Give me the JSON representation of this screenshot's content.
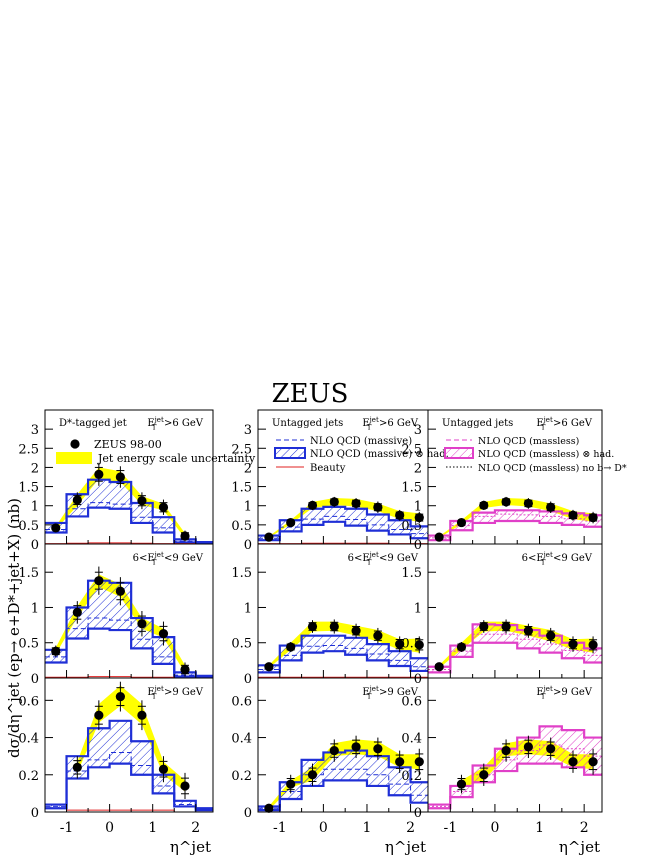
{
  "figure": {
    "title": "ZEUS",
    "ylabel": "dσ/dη^jet (ep→ e+D*+jet+X) (nb)",
    "xlabel": "η^jet",
    "x_ticks": [
      -1,
      0,
      1,
      2
    ]
  },
  "legends": {
    "left": [
      {
        "key": "data",
        "label": "ZEUS 98-00"
      },
      {
        "key": "band",
        "label": "Jet energy scale uncertainty"
      }
    ],
    "middle": [
      {
        "key": "dash-blue",
        "label": "NLO QCD (massive)"
      },
      {
        "key": "hatch-blue",
        "label": "NLO QCD (massive) ⊗ had."
      },
      {
        "key": "red",
        "label": "Beauty"
      }
    ],
    "right": [
      {
        "key": "dash-pink",
        "label": "NLO QCD (massless)"
      },
      {
        "key": "hatch-pink",
        "label": "NLO QCD (massless) ⊗ had."
      },
      {
        "key": "dot",
        "label": "NLO QCD (massless) no b→ D*"
      }
    ]
  },
  "colors": {
    "band": "#ffff00",
    "massive": "#1f2fd6",
    "massless": "#e040c8",
    "beauty": "#e02020",
    "data": "#000000"
  },
  "chart_data": {
    "type": "bar",
    "bin_edges": [
      -1.5,
      -1,
      -0.5,
      0,
      0.5,
      1,
      1.5,
      2,
      2.4
    ],
    "x_centers": [
      -1.25,
      -0.75,
      -0.25,
      0.25,
      0.75,
      1.25,
      1.75,
      2.2
    ],
    "xlim": [
      -1.5,
      2.4
    ],
    "rows": [
      {
        "cut": "E_T^jet>6 GeV",
        "ylim": [
          0,
          3.5
        ],
        "yticks": [
          "0",
          "0.5",
          "1",
          "1.5",
          "2",
          "2.5",
          "3"
        ],
        "ytick_values": [
          0,
          0.5,
          1,
          1.5,
          2,
          2.5,
          3
        ],
        "panels": [
          {
            "label": "D*-tagged jet",
            "cut": "E_T^jet>6 GeV",
            "data": [
              0.42,
              1.15,
              1.82,
              1.75,
              1.13,
              0.96,
              0.21,
              null
            ],
            "err": [
              0.08,
              0.2,
              0.3,
              0.28,
              0.22,
              0.2,
              0.14,
              null
            ],
            "band_low": [
              0.38,
              1.0,
              1.7,
              1.62,
              1.02,
              0.88,
              0.15,
              null
            ],
            "band_high": [
              0.46,
              1.3,
              2.0,
              1.9,
              1.25,
              1.05,
              0.28,
              null
            ],
            "theory_low": [
              0.3,
              0.72,
              0.95,
              0.92,
              0.55,
              0.3,
              0.04,
              0.02
            ],
            "theory_high": [
              0.55,
              1.3,
              1.68,
              1.62,
              1.07,
              0.7,
              0.12,
              0.05
            ],
            "theory_central": [
              0.38,
              0.92,
              1.08,
              1.04,
              0.7,
              0.42,
              0.07,
              0.03
            ],
            "beauty": [
              0.01,
              0.02,
              0.03,
              0.03,
              0.02,
              0.01,
              0.01,
              0.0
            ]
          },
          {
            "label": "Untagged jets",
            "cut": "E_T^jet>6 GeV",
            "data": [
              0.18,
              0.56,
              1.01,
              1.1,
              1.06,
              0.96,
              0.75,
              0.69
            ],
            "err": [
              0.05,
              0.08,
              0.12,
              0.13,
              0.14,
              0.15,
              0.14,
              0.15
            ],
            "band_low": [
              0.16,
              0.52,
              0.94,
              1.02,
              0.98,
              0.86,
              0.65,
              0.58
            ],
            "band_high": [
              0.2,
              0.62,
              1.1,
              1.2,
              1.18,
              1.06,
              0.86,
              0.8
            ],
            "theory_low": [
              0.1,
              0.33,
              0.5,
              0.58,
              0.48,
              0.35,
              0.25,
              0.15
            ],
            "theory_high": [
              0.22,
              0.62,
              0.92,
              0.97,
              0.92,
              0.77,
              0.62,
              0.46
            ],
            "theory_central": [
              0.15,
              0.44,
              0.65,
              0.72,
              0.64,
              0.5,
              0.38,
              0.27
            ],
            "beauty": [
              0.01,
              0.01,
              0.02,
              0.02,
              0.02,
              0.02,
              0.01,
              0.01
            ]
          },
          {
            "label": "Untagged jets",
            "cut": "E_T^jet>6 GeV",
            "data": [
              0.18,
              0.56,
              1.01,
              1.1,
              1.06,
              0.96,
              0.75,
              0.69
            ],
            "err": [
              0.05,
              0.08,
              0.12,
              0.13,
              0.14,
              0.15,
              0.14,
              0.15
            ],
            "band_low": [
              0.16,
              0.52,
              0.94,
              1.02,
              0.98,
              0.86,
              0.65,
              0.58
            ],
            "band_high": [
              0.2,
              0.62,
              1.1,
              1.2,
              1.18,
              1.06,
              0.86,
              0.8
            ],
            "theory_low": [
              0.1,
              0.36,
              0.55,
              0.6,
              0.6,
              0.55,
              0.5,
              0.45
            ],
            "theory_high": [
              0.22,
              0.6,
              0.82,
              0.88,
              0.88,
              0.85,
              0.8,
              0.75
            ],
            "theory_central": [
              0.16,
              0.48,
              0.72,
              0.78,
              0.76,
              0.72,
              0.66,
              0.6
            ],
            "beauty": [
              0.0,
              0.0,
              0.0,
              0.0,
              0.0,
              0.0,
              0.0,
              0.0
            ]
          }
        ]
      },
      {
        "cut": "6<E_T^jet<9 GeV",
        "ylim": [
          0,
          1.9
        ],
        "yticks": [
          "0",
          "0.5",
          "1",
          "1.5"
        ],
        "ytick_values": [
          0,
          0.5,
          1,
          1.5
        ],
        "panels": [
          {
            "label": "",
            "cut": "6<E_T^jet<9 GeV",
            "data": [
              0.38,
              0.93,
              1.38,
              1.23,
              0.77,
              0.63,
              0.12,
              null
            ],
            "err": [
              0.08,
              0.16,
              0.2,
              0.2,
              0.18,
              0.17,
              0.1,
              null
            ],
            "band_low": [
              0.34,
              0.86,
              1.29,
              1.15,
              0.7,
              0.57,
              0.07,
              null
            ],
            "band_high": [
              0.43,
              1.02,
              1.47,
              1.33,
              0.85,
              0.7,
              0.18,
              null
            ],
            "theory_low": [
              0.22,
              0.56,
              0.7,
              0.68,
              0.42,
              0.2,
              0.02,
              0.01
            ],
            "theory_high": [
              0.4,
              1.0,
              1.38,
              1.35,
              0.85,
              0.58,
              0.08,
              0.03
            ],
            "theory_central": [
              0.3,
              0.7,
              0.85,
              0.82,
              0.55,
              0.3,
              0.04,
              0.02
            ],
            "beauty": [
              0.01,
              0.01,
              0.02,
              0.02,
              0.01,
              0.01,
              0.0,
              0.0
            ]
          },
          {
            "label": "",
            "cut": "6<E_T^jet<9 GeV",
            "data": [
              0.16,
              0.44,
              0.73,
              0.73,
              0.67,
              0.6,
              0.48,
              0.47
            ],
            "err": [
              0.05,
              0.07,
              0.09,
              0.1,
              0.1,
              0.11,
              0.11,
              0.12
            ],
            "band_low": [
              0.14,
              0.4,
              0.66,
              0.67,
              0.6,
              0.52,
              0.4,
              0.36
            ],
            "band_high": [
              0.18,
              0.5,
              0.8,
              0.8,
              0.74,
              0.68,
              0.55,
              0.56
            ],
            "theory_low": [
              0.08,
              0.25,
              0.36,
              0.38,
              0.33,
              0.25,
              0.17,
              0.1
            ],
            "theory_high": [
              0.18,
              0.46,
              0.6,
              0.6,
              0.57,
              0.48,
              0.38,
              0.28
            ],
            "theory_central": [
              0.12,
              0.32,
              0.45,
              0.46,
              0.42,
              0.34,
              0.25,
              0.16
            ],
            "beauty": [
              0.01,
              0.01,
              0.01,
              0.01,
              0.01,
              0.01,
              0.01,
              0.01
            ]
          },
          {
            "label": "",
            "cut": "6<E_T^jet<9 GeV",
            "data": [
              0.16,
              0.44,
              0.73,
              0.73,
              0.67,
              0.6,
              0.48,
              0.47
            ],
            "err": [
              0.05,
              0.07,
              0.09,
              0.1,
              0.1,
              0.11,
              0.11,
              0.12
            ],
            "band_low": [
              0.14,
              0.4,
              0.66,
              0.67,
              0.6,
              0.52,
              0.4,
              0.36
            ],
            "band_high": [
              0.18,
              0.5,
              0.8,
              0.8,
              0.74,
              0.68,
              0.55,
              0.56
            ],
            "theory_low": [
              0.08,
              0.3,
              0.5,
              0.5,
              0.42,
              0.36,
              0.28,
              0.22
            ],
            "theory_high": [
              0.16,
              0.46,
              0.76,
              0.75,
              0.68,
              0.6,
              0.5,
              0.42
            ],
            "theory_central": [
              0.12,
              0.38,
              0.62,
              0.62,
              0.55,
              0.48,
              0.39,
              0.32
            ],
            "beauty": [
              0.0,
              0.0,
              0.0,
              0.0,
              0.0,
              0.0,
              0.0,
              0.0
            ]
          }
        ]
      },
      {
        "cut": "E_T^jet>9 GeV",
        "ylim": [
          0,
          0.72
        ],
        "yticks": [
          "0",
          "0.2",
          "0.4",
          "0.6"
        ],
        "ytick_values": [
          0,
          0.2,
          0.4,
          0.6
        ],
        "panels": [
          {
            "label": "",
            "cut": "E_T^jet>9 GeV",
            "data": [
              null,
              0.24,
              0.52,
              0.62,
              0.52,
              0.23,
              0.14,
              null
            ],
            "err": [
              null,
              0.06,
              0.08,
              0.08,
              0.08,
              0.07,
              0.07,
              null
            ],
            "band_low": [
              null,
              0.21,
              0.48,
              0.57,
              0.47,
              0.2,
              0.11,
              null
            ],
            "band_high": [
              null,
              0.27,
              0.58,
              0.68,
              0.58,
              0.27,
              0.17,
              null
            ],
            "theory_low": [
              0.02,
              0.18,
              0.24,
              0.26,
              0.2,
              0.1,
              0.03,
              0.01
            ],
            "theory_high": [
              0.04,
              0.3,
              0.45,
              0.49,
              0.38,
              0.2,
              0.06,
              0.02
            ],
            "theory_central": [
              0.03,
              0.22,
              0.28,
              0.32,
              0.25,
              0.14,
              0.04,
              0.01
            ],
            "beauty": [
              0.0,
              0.01,
              0.01,
              0.01,
              0.01,
              0.01,
              0.0,
              0.0
            ]
          },
          {
            "label": "",
            "cut": "E_T^jet>9 GeV",
            "data": [
              0.02,
              0.15,
              0.2,
              0.33,
              0.35,
              0.34,
              0.27,
              0.27
            ],
            "err": [
              0.02,
              0.05,
              0.06,
              0.06,
              0.06,
              0.06,
              0.06,
              0.07
            ],
            "band_low": [
              0.01,
              0.13,
              0.17,
              0.3,
              0.31,
              0.3,
              0.24,
              0.23
            ],
            "band_high": [
              0.03,
              0.17,
              0.24,
              0.37,
              0.39,
              0.38,
              0.31,
              0.31
            ],
            "theory_low": [
              0.01,
              0.07,
              0.14,
              0.17,
              0.17,
              0.14,
              0.09,
              0.05
            ],
            "theory_high": [
              0.03,
              0.16,
              0.28,
              0.32,
              0.33,
              0.3,
              0.24,
              0.16
            ],
            "theory_central": [
              0.02,
              0.11,
              0.2,
              0.23,
              0.23,
              0.2,
              0.15,
              0.09
            ],
            "beauty": [
              0.0,
              0.0,
              0.0,
              0.0,
              0.0,
              0.0,
              0.0,
              0.0
            ]
          },
          {
            "label": "",
            "cut": "E_T^jet>9 GeV",
            "data": [
              null,
              0.15,
              0.2,
              0.33,
              0.35,
              0.34,
              0.27,
              0.27
            ],
            "err": [
              null,
              0.05,
              0.06,
              0.06,
              0.06,
              0.06,
              0.06,
              0.07
            ],
            "band_low": [
              null,
              0.13,
              0.17,
              0.3,
              0.31,
              0.3,
              0.24,
              0.23
            ],
            "band_high": [
              null,
              0.17,
              0.24,
              0.37,
              0.39,
              0.38,
              0.31,
              0.31
            ],
            "theory_low": [
              0.02,
              0.08,
              0.16,
              0.22,
              0.26,
              0.26,
              0.24,
              0.2
            ],
            "theory_high": [
              0.04,
              0.14,
              0.25,
              0.34,
              0.4,
              0.46,
              0.44,
              0.4
            ],
            "theory_central": [
              0.03,
              0.11,
              0.2,
              0.28,
              0.33,
              0.36,
              0.34,
              0.3
            ],
            "beauty": [
              0.0,
              0.0,
              0.0,
              0.0,
              0.0,
              0.0,
              0.0,
              0.0
            ]
          }
        ]
      }
    ]
  }
}
